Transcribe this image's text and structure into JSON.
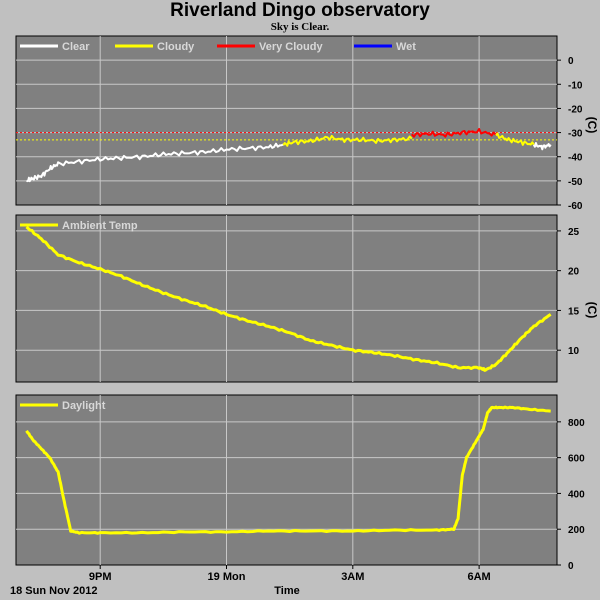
{
  "title": "Riverland Dingo observatory",
  "subtitle": "Sky is Clear.",
  "colors": {
    "background": "#c0c0c0",
    "plot_bg": "#808080",
    "grid": "#c8c8c8",
    "clear": "#ffffff",
    "cloudy": "#ffff00",
    "very_cloudy": "#ff0000",
    "wet": "#0000ff",
    "ambient": "#ffff00",
    "daylight": "#ffff00"
  },
  "x_axis": {
    "label": "Time",
    "date_label": "18 Sun Nov 2012",
    "ticks": [
      {
        "label": "9PM",
        "hour": 21
      },
      {
        "label": "19 Mon",
        "hour": 24
      },
      {
        "label": "3AM",
        "hour": 27
      },
      {
        "label": "6AM",
        "hour": 30
      }
    ]
  },
  "chart_data": [
    {
      "type": "line",
      "panel": "sky",
      "ylabel": "(C)",
      "ylim": [
        -60,
        10
      ],
      "yticks": [
        0,
        -10,
        -20,
        -30,
        -40,
        -50,
        -60
      ],
      "grid": true,
      "legend": [
        "Clear",
        "Cloudy",
        "Very Cloudy",
        "Wet"
      ],
      "thresholds": [
        {
          "name": "Very Cloudy",
          "value": -30
        },
        {
          "name": "Cloudy",
          "value": -33
        }
      ],
      "series": [
        {
          "name": "Clear",
          "x_hours": [
            19.25,
            19.4,
            19.6,
            19.8,
            20.0,
            20.5,
            21.0,
            21.5,
            22.0,
            22.5,
            23.0,
            23.5,
            24.0,
            24.5,
            25.0,
            25.35
          ],
          "values": [
            -50,
            -49,
            -48,
            -45,
            -43,
            -42,
            -41,
            -40.5,
            -40,
            -39,
            -38.5,
            -38,
            -37,
            -36.5,
            -36,
            -35
          ]
        },
        {
          "name": "Cloudy",
          "x_hours": [
            25.35,
            25.6,
            26.0,
            26.4,
            26.8,
            27.2,
            27.6,
            28.0,
            28.4
          ],
          "values": [
            -35,
            -34,
            -33.5,
            -32,
            -33,
            -33,
            -33.5,
            -33,
            -32.5
          ]
        },
        {
          "name": "Very Cloudy",
          "x_hours": [
            28.4,
            28.8,
            29.2,
            29.6,
            30.0,
            30.4
          ],
          "values": [
            -31,
            -30.5,
            -31,
            -30,
            -29.5,
            -31
          ]
        },
        {
          "name": "Cloudy",
          "x_hours": [
            30.4,
            30.7,
            31.0,
            31.3
          ],
          "values": [
            -31,
            -33,
            -34,
            -35
          ]
        },
        {
          "name": "Clear",
          "x_hours": [
            31.3,
            31.5,
            31.7
          ],
          "values": [
            -35,
            -36,
            -35
          ]
        }
      ]
    },
    {
      "type": "line",
      "panel": "ambient",
      "ylabel": "(C)",
      "ylim": [
        6,
        27
      ],
      "yticks": [
        25,
        20,
        15,
        10
      ],
      "grid": true,
      "legend": [
        "Ambient Temp"
      ],
      "series": [
        {
          "name": "Ambient Temp",
          "x_hours": [
            19.25,
            19.6,
            20.0,
            20.5,
            21.0,
            21.5,
            22.0,
            22.5,
            23.0,
            23.5,
            24.0,
            24.5,
            25.0,
            25.5,
            26.0,
            26.5,
            27.0,
            27.5,
            28.0,
            28.5,
            29.0,
            29.5,
            30.0,
            30.15,
            30.4,
            30.7,
            31.0,
            31.3,
            31.7
          ],
          "values": [
            25.5,
            24,
            22,
            21,
            20.2,
            19.3,
            18.2,
            17.2,
            16.3,
            15.5,
            14.5,
            13.7,
            13,
            12.2,
            11.2,
            10.6,
            10,
            9.7,
            9.3,
            8.8,
            8.4,
            7.8,
            7.8,
            7.5,
            8.2,
            9.8,
            11.5,
            13,
            14.5
          ]
        }
      ]
    },
    {
      "type": "line",
      "panel": "daylight",
      "ylabel": "",
      "ylim": [
        0,
        950
      ],
      "yticks": [
        800,
        600,
        400,
        200,
        0
      ],
      "grid": true,
      "legend": [
        "Daylight"
      ],
      "series": [
        {
          "name": "Daylight",
          "x_hours": [
            19.25,
            19.4,
            19.6,
            19.8,
            20.0,
            20.15,
            20.3,
            20.5,
            21.0,
            22.0,
            23.0,
            24.0,
            25.0,
            26.0,
            27.0,
            28.0,
            29.0,
            29.4,
            29.5,
            29.6,
            29.7,
            29.9,
            30.0,
            30.1,
            30.2,
            30.3,
            30.5,
            30.8,
            31.2,
            31.7
          ],
          "values": [
            750,
            700,
            650,
            600,
            520,
            350,
            190,
            180,
            180,
            180,
            185,
            185,
            190,
            190,
            190,
            195,
            195,
            200,
            260,
            500,
            600,
            680,
            720,
            760,
            850,
            880,
            880,
            880,
            870,
            860
          ]
        }
      ]
    }
  ]
}
